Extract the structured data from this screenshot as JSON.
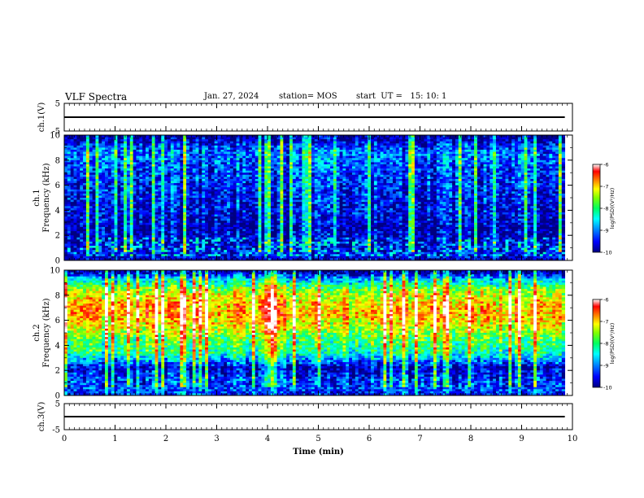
{
  "header": {
    "title": "VLF Spectra",
    "date": "Jan. 27, 2024",
    "station": "station= MOS",
    "start": "start  UT =   15: 10: 1"
  },
  "chart_data": [
    {
      "type": "line",
      "name": "ch1-amplitude",
      "ylabel": "ch.1(V)",
      "ylim": [
        -5,
        5
      ],
      "yticks": [
        "5",
        "-5"
      ],
      "xlim": [
        0,
        10
      ],
      "series": [
        {
          "x": [
            0,
            9.85
          ],
          "y": [
            0,
            0
          ]
        }
      ]
    },
    {
      "type": "heatmap",
      "name": "ch1-spectrogram",
      "ylabel": "ch.1\nFrequency (kHz)",
      "ylim": [
        0,
        10
      ],
      "yticks": [
        "0",
        "2",
        "4",
        "6",
        "8",
        "10"
      ],
      "xlim": [
        0,
        10
      ],
      "x_extent_min": 9.85,
      "intensity_profile": [
        [
          0,
          -9.8
        ],
        [
          0.5,
          -9.6
        ],
        [
          1.2,
          -9.7
        ],
        [
          2.5,
          -9.8
        ],
        [
          4,
          -9.6
        ],
        [
          5.5,
          -9.5
        ],
        [
          6.5,
          -9.4
        ],
        [
          7.5,
          -9.3
        ],
        [
          8.5,
          -9.1
        ],
        [
          9.2,
          -9.4
        ],
        [
          9.7,
          -9.9
        ],
        [
          10,
          -10
        ]
      ],
      "colorbar": {
        "label": "log(PSD)(V²/Hz)",
        "range": [
          -10,
          -6
        ],
        "ticks": [
          "-6",
          "-7",
          "-8",
          "-9",
          "-10"
        ]
      }
    },
    {
      "type": "heatmap",
      "name": "ch2-spectrogram",
      "ylabel": "ch.2\nFrequency (kHz)",
      "ylim": [
        0,
        10
      ],
      "yticks": [
        "0",
        "2",
        "4",
        "6",
        "8",
        "10"
      ],
      "xlim": [
        0,
        10
      ],
      "x_extent_min": 9.85,
      "intensity_profile": [
        [
          0,
          -9.5
        ],
        [
          0.6,
          -9.3
        ],
        [
          1.5,
          -9.4
        ],
        [
          2.2,
          -9.8
        ],
        [
          2.8,
          -9.0
        ],
        [
          3.5,
          -8.3
        ],
        [
          4.5,
          -8.0
        ],
        [
          5.5,
          -7.4
        ],
        [
          6.5,
          -7.0
        ],
        [
          7.5,
          -7.2
        ],
        [
          8.5,
          -7.8
        ],
        [
          9.3,
          -8.8
        ],
        [
          9.8,
          -9.8
        ],
        [
          10,
          -10
        ]
      ],
      "colorbar": {
        "label": "log(PSD)(V²/Hz)",
        "range": [
          -10,
          -6
        ],
        "ticks": [
          "-6",
          "-7",
          "-8",
          "-9",
          "-10"
        ]
      }
    },
    {
      "type": "line",
      "name": "ch3-amplitude",
      "ylabel": "ch.3(V)",
      "ylim": [
        -5,
        5
      ],
      "yticks": [
        "5",
        "-5"
      ],
      "xlim": [
        0,
        10
      ],
      "xlabel": "Time (min)",
      "xticks": [
        "0",
        "1",
        "2",
        "3",
        "4",
        "5",
        "6",
        "7",
        "8",
        "9",
        "10"
      ],
      "series": [
        {
          "x": [
            0,
            9.85
          ],
          "y": [
            0,
            0
          ]
        }
      ]
    }
  ],
  "colors": {
    "colormap": [
      "#000080",
      "#0000ff",
      "#0080ff",
      "#00ffff",
      "#00ff80",
      "#80ff00",
      "#ffff00",
      "#ff8000",
      "#ff0000",
      "#ffffff"
    ]
  }
}
